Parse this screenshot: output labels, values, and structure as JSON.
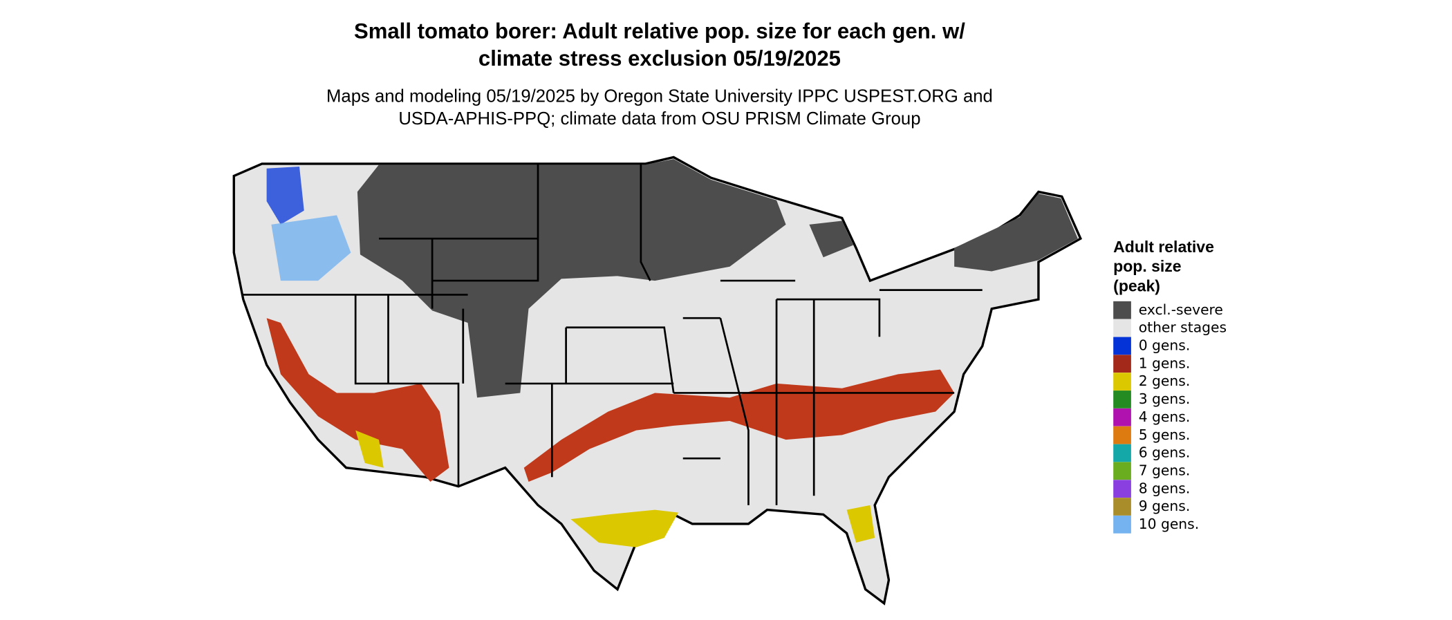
{
  "title": [
    "Small tomato borer: Adult relative pop. size for each gen. w/",
    "climate stress exclusion 05/19/2025"
  ],
  "subtitle": [
    "Maps and modeling 05/19/2025 by Oregon State University IPPC USPEST.ORG and",
    "USDA-APHIS-PPQ; climate data from OSU PRISM Climate Group"
  ],
  "legend": {
    "title": [
      "Adult relative",
      "pop. size",
      "(peak)"
    ],
    "items": [
      {
        "label": "excl.-severe",
        "color": "#4d4d4d"
      },
      {
        "label": "other stages",
        "color": "#e5e5e5"
      },
      {
        "label": "0 gens.",
        "color": "#0433d8"
      },
      {
        "label": "1 gens.",
        "color": "#a3291b"
      },
      {
        "label": "2 gens.",
        "color": "#dcc800"
      },
      {
        "label": "3 gens.",
        "color": "#238b22"
      },
      {
        "label": "4 gens.",
        "color": "#b012b0"
      },
      {
        "label": "5 gens.",
        "color": "#dd7a10"
      },
      {
        "label": "6 gens.",
        "color": "#14a8a8"
      },
      {
        "label": "7 gens.",
        "color": "#6aad1e"
      },
      {
        "label": "8 gens.",
        "color": "#8a3fe0"
      },
      {
        "label": "9 gens.",
        "color": "#a88d2a"
      },
      {
        "label": "10 gens.",
        "color": "#74b2f0"
      }
    ]
  }
}
